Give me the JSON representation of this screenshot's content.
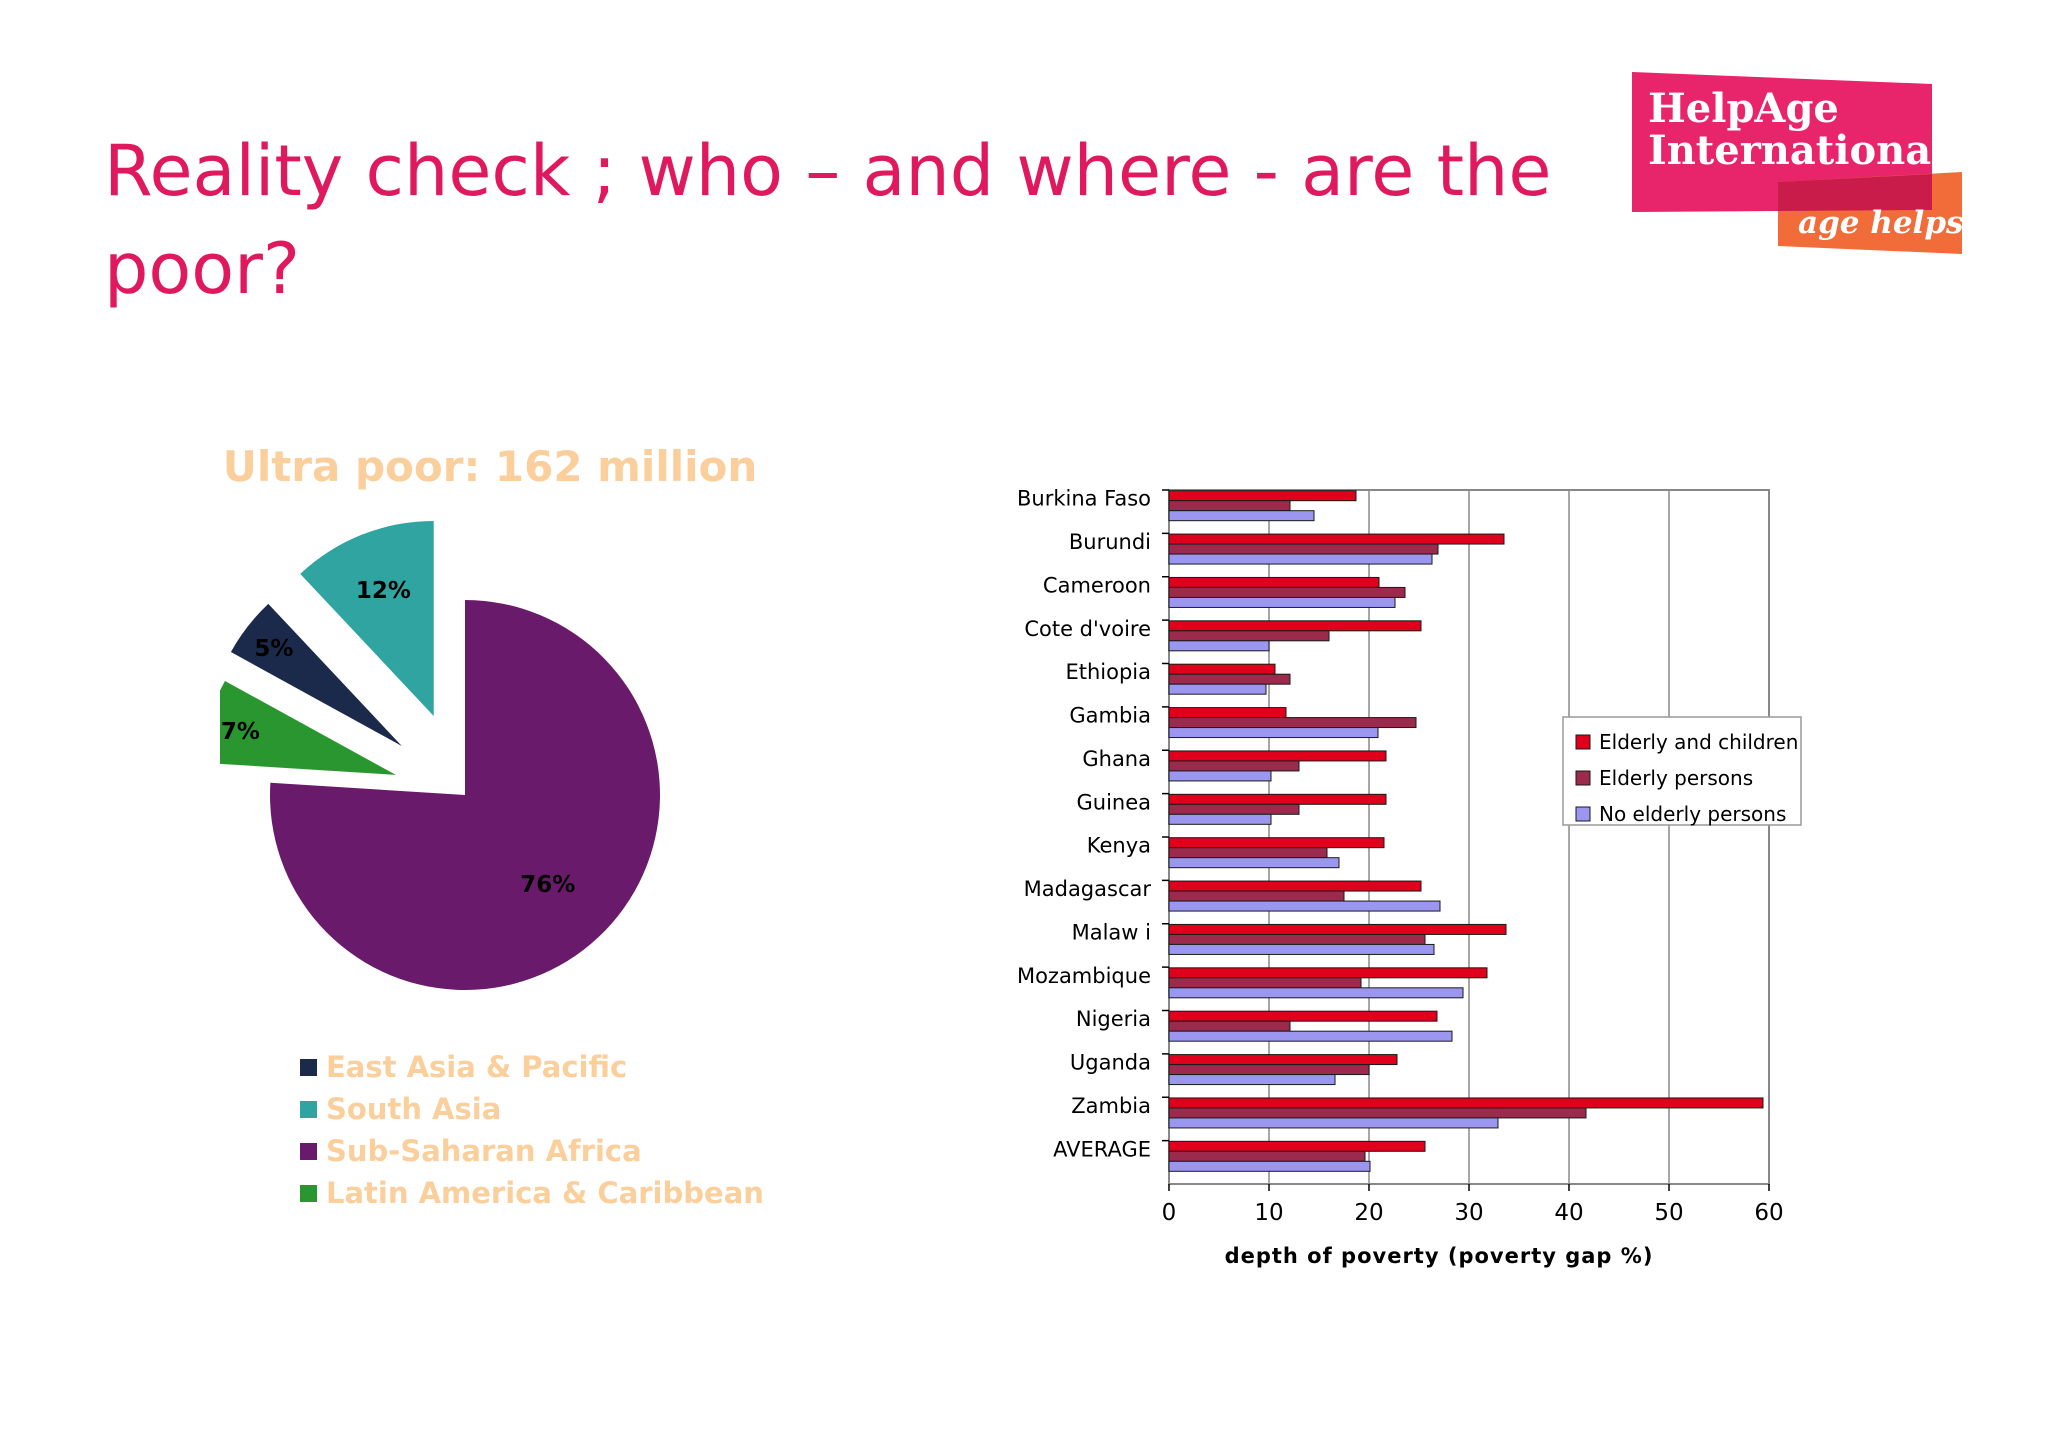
{
  "slide": {
    "title": "Reality check ; who – and where -  are the poor?"
  },
  "logo": {
    "line1": "HelpAge",
    "line2": "International",
    "tagline": "age helps",
    "colors": {
      "primary": "#e8246a",
      "secondary": "#f26c3a"
    }
  },
  "pie_chart": {
    "title": "Ultra poor: 162 million",
    "legend": [
      {
        "label": "East Asia & Pacific",
        "color": "#1b2a4a"
      },
      {
        "label": "South Asia",
        "color": "#2fa4a0"
      },
      {
        "label": "Sub-Saharan Africa",
        "color": "#6a1a6b"
      },
      {
        "label": "Latin America & Caribbean",
        "color": "#2a9630"
      }
    ]
  },
  "bar_chart": {
    "xlabel": "depth of poverty (poverty gap %)",
    "legend": [
      "Elderly and children",
      "Elderly persons",
      "No elderly persons"
    ]
  },
  "chart_data": [
    {
      "type": "pie",
      "title": "Ultra poor: 162 million",
      "slices": [
        {
          "label": "Sub-Saharan Africa",
          "value": 76,
          "display": "76%",
          "color": "#6a1a6b",
          "exploded": false
        },
        {
          "label": "Latin America & Caribbean",
          "value": 7,
          "display": "7%",
          "color": "#2a9630",
          "exploded": true
        },
        {
          "label": "East Asia & Pacific",
          "value": 5,
          "display": "5%",
          "color": "#1b2a4a",
          "exploded": true
        },
        {
          "label": "South Asia",
          "value": 12,
          "display": "12%",
          "color": "#2fa4a0",
          "exploded": true
        }
      ],
      "legend_position": "bottom"
    },
    {
      "type": "bar",
      "orientation": "horizontal",
      "categories": [
        "Burkina Faso",
        "Burundi",
        "Cameroon",
        "Cote d'voire",
        "Ethiopia",
        "Gambia",
        "Ghana",
        "Guinea",
        "Kenya",
        "Madagascar",
        "Malaw i",
        "Mozambique",
        "Nigeria",
        "Uganda",
        "Zambia",
        "AVERAGE"
      ],
      "series": [
        {
          "name": "Elderly and children",
          "color": "#e0001b",
          "values": [
            18.7,
            33.5,
            21.0,
            25.2,
            10.6,
            11.7,
            21.7,
            21.7,
            21.5,
            25.2,
            33.7,
            31.8,
            26.8,
            22.8,
            59.4,
            25.6
          ]
        },
        {
          "name": "Elderly persons",
          "color": "#9b2a4c",
          "values": [
            12.1,
            26.9,
            23.6,
            16.0,
            12.1,
            24.7,
            13.0,
            13.0,
            15.8,
            17.5,
            25.6,
            19.2,
            12.1,
            20.0,
            41.7,
            19.6
          ]
        },
        {
          "name": "No elderly persons",
          "color": "#9b97f0",
          "values": [
            14.5,
            26.3,
            22.6,
            10.0,
            9.7,
            20.9,
            10.2,
            10.2,
            17.0,
            27.1,
            26.5,
            29.4,
            28.3,
            16.6,
            32.9,
            20.1
          ]
        }
      ],
      "xlabel": "depth of poverty (poverty gap %)",
      "ylabel": "",
      "xlim": [
        0,
        60
      ],
      "xticks": [
        0,
        10,
        20,
        30,
        40,
        50,
        60
      ],
      "grid": true,
      "legend_position": "right"
    }
  ]
}
